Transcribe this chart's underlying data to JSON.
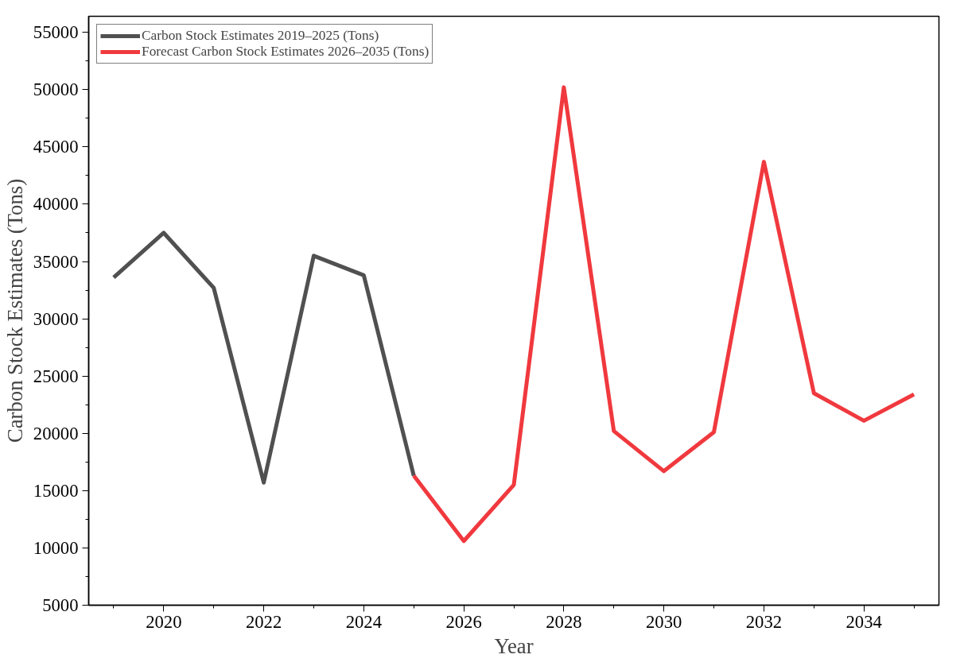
{
  "chart_data": {
    "type": "line",
    "xlabel": "Year",
    "ylabel": "Carbon Stock Estimates (Tons)",
    "series": [
      {
        "name": "Carbon Stock Estimates 2019–2025 (Tons)",
        "color": "#505050",
        "x": [
          2019,
          2020,
          2021,
          2022,
          2023,
          2024,
          2025
        ],
        "values": [
          33600,
          37500,
          32700,
          15700,
          35500,
          33800,
          16300
        ]
      },
      {
        "name": "Forecast Carbon Stock Estimates 2026–2035 (Tons)",
        "color": "#f0393e",
        "x": [
          2025,
          2026,
          2027,
          2028,
          2029,
          2030,
          2031,
          2032,
          2033,
          2034,
          2035
        ],
        "values": [
          16300,
          10600,
          15500,
          50200,
          20200,
          16700,
          20100,
          43700,
          23500,
          21100,
          23400
        ]
      }
    ],
    "xlim": [
      2018.5,
      2035.5
    ],
    "xticks": [
      2020,
      2022,
      2024,
      2026,
      2028,
      2030,
      2032,
      2034
    ],
    "ylim": [
      5000,
      56400
    ],
    "yticks": [
      5000,
      10000,
      15000,
      20000,
      25000,
      30000,
      35000,
      40000,
      45000,
      50000,
      55000
    ],
    "grid": false,
    "legend": "top left",
    "marker": "none",
    "line_style": "solid"
  }
}
